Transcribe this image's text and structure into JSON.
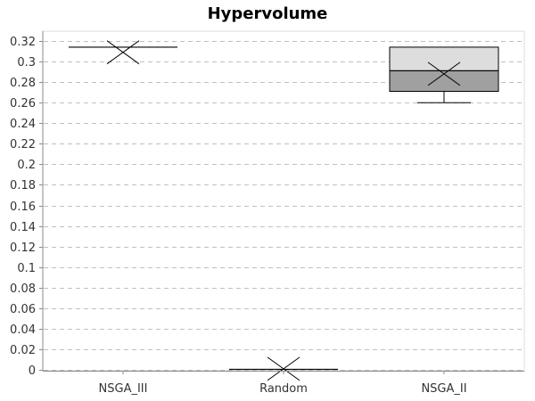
{
  "chart_data": {
    "type": "box",
    "title": "Hypervolume",
    "xlabel": "",
    "ylabel": "",
    "ylim": [
      0,
      0.325
    ],
    "yticks": [
      0,
      0.02,
      0.04,
      0.06,
      0.08,
      0.1,
      0.12,
      0.14,
      0.16,
      0.18,
      0.2,
      0.22,
      0.24,
      0.26,
      0.28,
      0.3,
      0.32
    ],
    "ytick_labels": [
      "0",
      "0.02",
      "0.04",
      "0.06",
      "0.08",
      "0.1",
      "0.12",
      "0.14",
      "0.16",
      "0.18",
      "0.2",
      "0.22",
      "0.24",
      "0.26",
      "0.28",
      "0.3",
      "0.32"
    ],
    "grid": true,
    "categories": [
      "NSGA_III",
      "Random",
      "NSGA_II"
    ],
    "boxes": [
      {
        "name": "NSGA_III",
        "min": 0.314,
        "q1": 0.314,
        "median": 0.314,
        "q3": 0.314,
        "max": 0.314,
        "mean": 0.309
      },
      {
        "name": "Random",
        "min": 0.0005,
        "q1": 0.0005,
        "median": 0.0005,
        "q3": 0.0005,
        "max": 0.0005,
        "mean": 0.001
      },
      {
        "name": "NSGA_II",
        "min": 0.26,
        "q1": 0.271,
        "median": 0.291,
        "q3": 0.314,
        "max": 0.314,
        "mean": 0.288
      }
    ],
    "colors": {
      "upper_box": "#dddddd",
      "lower_box": "#a0a0a0",
      "grid": "#c0c0c0",
      "stroke": "#000000"
    }
  }
}
